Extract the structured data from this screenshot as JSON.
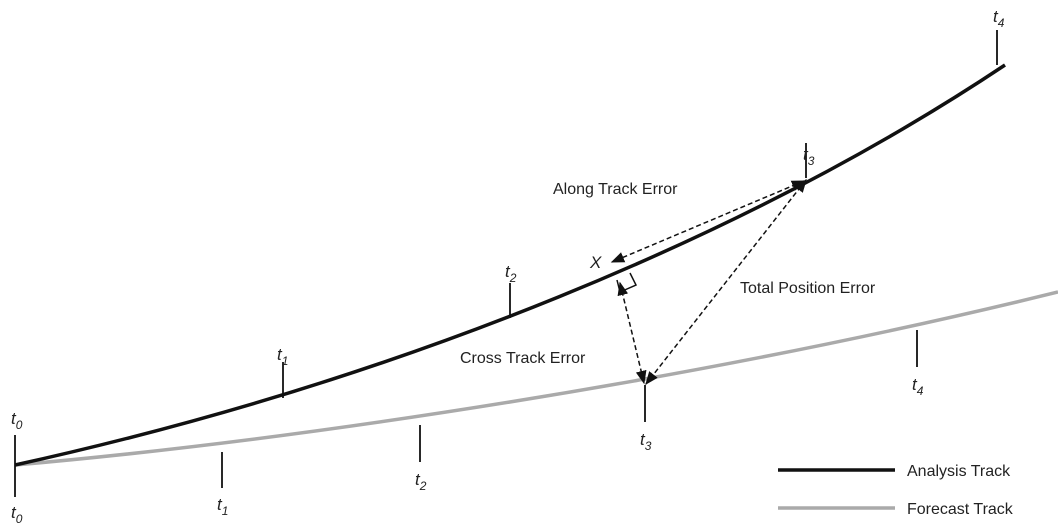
{
  "annotations": {
    "along_track": "Along Track Error",
    "cross_track": "Cross Track Error",
    "total_position": "Total Position Error",
    "point": "X"
  },
  "analysis_track": {
    "ticks": [
      {
        "letter": "t",
        "subscript": "0"
      },
      {
        "letter": "t",
        "subscript": "1"
      },
      {
        "letter": "t",
        "subscript": "2"
      },
      {
        "letter": "t",
        "subscript": "3"
      },
      {
        "letter": "t",
        "subscript": "4"
      }
    ]
  },
  "forecast_track": {
    "ticks": [
      {
        "letter": "t",
        "subscript": "0"
      },
      {
        "letter": "t",
        "subscript": "1"
      },
      {
        "letter": "t",
        "subscript": "2"
      },
      {
        "letter": "t",
        "subscript": "3"
      },
      {
        "letter": "t",
        "subscript": "4"
      }
    ]
  },
  "legend": [
    "Analysis Track",
    "Forecast Track"
  ]
}
